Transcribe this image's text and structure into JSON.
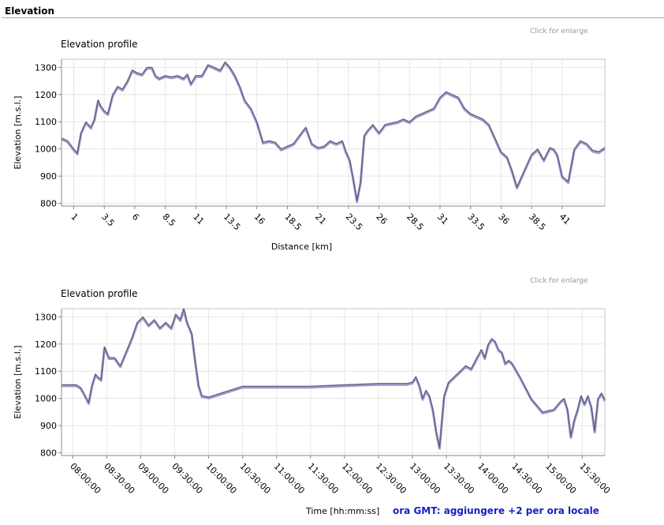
{
  "section": {
    "title": "Elevation"
  },
  "enlarge_label": "Click for enlarge",
  "footer": {
    "time_label": "Time  [hh:mm:ss]",
    "gmt_note": "ora GMT: aggiungere +2 per ora locale"
  },
  "colors": {
    "line": "#5c5c80",
    "line_shadow": "#9999c8",
    "grid": "#e6e6e6",
    "axis": "#888888"
  },
  "chart_data": [
    {
      "type": "line",
      "title": "Elevation profile",
      "xlabel": "Distance [km]",
      "ylabel": "Elevation [m.s.l.]",
      "xlim": [
        0,
        44.5
      ],
      "ylim": [
        790,
        1330
      ],
      "x_ticks": [
        1,
        3.5,
        6,
        8.5,
        11,
        13.5,
        16,
        18.5,
        21,
        23.5,
        26,
        28.5,
        31,
        33.5,
        36,
        38.5,
        41
      ],
      "x_tick_labels": [
        "1",
        "3.5",
        "6",
        "8.5",
        "11",
        "13.5",
        "16",
        "18.5",
        "21",
        "23.5",
        "26",
        "28.5",
        "31",
        "33.5",
        "36",
        "38.5",
        "41"
      ],
      "y_ticks": [
        800,
        900,
        1000,
        1100,
        1200,
        1300
      ],
      "y_tick_labels": [
        "800",
        "900",
        "1000",
        "1100",
        "1200",
        "1300"
      ],
      "grid": true,
      "series": [
        {
          "x": [
            0,
            0.5,
            1.0,
            1.3,
            1.6,
            2.0,
            2.4,
            2.7,
            3.0,
            3.2,
            3.5,
            3.8,
            4.2,
            4.6,
            5.0,
            5.4,
            5.8,
            6.2,
            6.6,
            7.0,
            7.4,
            7.7,
            8.0,
            8.5,
            9.0,
            9.5,
            10.0,
            10.3,
            10.6,
            11.0,
            11.5,
            12.0,
            12.5,
            13.0,
            13.4,
            13.8,
            14.2,
            14.6,
            15.0,
            15.5,
            16.0,
            16.5,
            17.0,
            17.5,
            18.0,
            18.5,
            19.0,
            19.5,
            20.0,
            20.5,
            21.0,
            21.5,
            22.0,
            22.5,
            23.0,
            23.3,
            23.6,
            23.9,
            24.2,
            24.5,
            24.8,
            25.1,
            25.5,
            26.0,
            26.5,
            27.0,
            27.5,
            28.0,
            28.5,
            29.0,
            29.5,
            30.0,
            30.5,
            31.0,
            31.5,
            32.0,
            32.5,
            33.0,
            33.5,
            34.0,
            34.5,
            35.0,
            35.5,
            36.0,
            36.5,
            36.9,
            37.3,
            37.7,
            38.1,
            38.5,
            39.0,
            39.5,
            40.0,
            40.3,
            40.6,
            41.0,
            41.5,
            42.0,
            42.5,
            43.0,
            43.5,
            44.0,
            44.5
          ],
          "y": [
            1040,
            1030,
            1000,
            985,
            1060,
            1100,
            1080,
            1110,
            1180,
            1160,
            1140,
            1130,
            1200,
            1230,
            1220,
            1250,
            1290,
            1280,
            1275,
            1300,
            1300,
            1270,
            1260,
            1270,
            1265,
            1270,
            1260,
            1275,
            1240,
            1270,
            1270,
            1310,
            1300,
            1290,
            1320,
            1300,
            1270,
            1230,
            1180,
            1150,
            1100,
            1025,
            1030,
            1025,
            1000,
            1010,
            1020,
            1050,
            1080,
            1020,
            1005,
            1010,
            1030,
            1020,
            1030,
            990,
            960,
            890,
            810,
            880,
            1050,
            1070,
            1090,
            1060,
            1090,
            1095,
            1100,
            1110,
            1100,
            1120,
            1130,
            1140,
            1150,
            1190,
            1210,
            1200,
            1190,
            1150,
            1130,
            1120,
            1110,
            1090,
            1040,
            990,
            970,
            920,
            860,
            900,
            940,
            980,
            1000,
            960,
            1005,
            1000,
            980,
            900,
            880,
            1000,
            1030,
            1020,
            995,
            990,
            1005
          ]
        }
      ]
    },
    {
      "type": "line",
      "title": "Elevation profile",
      "xlabel": "",
      "ylabel": "Elevation [m.s.l.]",
      "xlim": [
        "07:50:00",
        "15:50:00"
      ],
      "ylim": [
        790,
        1330
      ],
      "x_ticks": [
        "08:00:00",
        "08:30:00",
        "09:00:00",
        "09:30:00",
        "10:00:00",
        "10:30:00",
        "11:00:00",
        "11:30:00",
        "12:00:00",
        "12:30:00",
        "13:00:00",
        "13:30:00",
        "14:00:00",
        "14:30:00",
        "15:00:00",
        "15:30:00"
      ],
      "x_tick_labels": [
        "08:00:00",
        "08:30:00",
        "09:00:00",
        "09:30:00",
        "10:00:00",
        "10:30:00",
        "11:00:00",
        "11:30:00",
        "12:00:00",
        "12:30:00",
        "13:00:00",
        "13:30:00",
        "14:00:00",
        "14:30:00",
        "15:00:00",
        "15:30:00"
      ],
      "y_ticks": [
        800,
        900,
        1000,
        1100,
        1200,
        1300
      ],
      "y_tick_labels": [
        "800",
        "900",
        "1000",
        "1100",
        "1200",
        "1300"
      ],
      "grid": true,
      "series": [
        {
          "x": [
            "07:50:00",
            "08:03:00",
            "08:07:00",
            "08:11:00",
            "08:14:00",
            "08:17:00",
            "08:20:00",
            "08:22:00",
            "08:25:00",
            "08:28:00",
            "08:32:00",
            "08:37:00",
            "08:42:00",
            "08:47:00",
            "08:52:00",
            "08:57:00",
            "09:02:00",
            "09:07:00",
            "09:12:00",
            "09:17:00",
            "09:22:00",
            "09:27:00",
            "09:31:00",
            "09:35:00",
            "09:38:00",
            "09:41:00",
            "09:45:00",
            "09:48:00",
            "09:51:00",
            "09:54:00",
            "10:00:00",
            "10:30:00",
            "11:00:00",
            "11:30:00",
            "12:00:00",
            "12:30:00",
            "12:55:00",
            "13:00:00",
            "13:03:00",
            "13:06:00",
            "13:09:00",
            "13:12:00",
            "13:15:00",
            "13:18:00",
            "13:21:00",
            "13:24:00",
            "13:28:00",
            "13:32:00",
            "13:37:00",
            "13:42:00",
            "13:47:00",
            "13:52:00",
            "13:57:00",
            "14:01:00",
            "14:04:00",
            "14:07:00",
            "14:10:00",
            "14:13:00",
            "14:16:00",
            "14:19:00",
            "14:22:00",
            "14:25:00",
            "14:28:00",
            "14:35:00",
            "14:45:00",
            "14:55:00",
            "15:05:00",
            "15:08:00",
            "15:11:00",
            "15:14:00",
            "15:17:00",
            "15:20:00",
            "15:23:00",
            "15:26:00",
            "15:29:00",
            "15:32:00",
            "15:35:00",
            "15:38:00",
            "15:41:00",
            "15:44:00",
            "15:47:00",
            "15:50:00"
          ],
          "y": [
            1050,
            1050,
            1040,
            1010,
            985,
            1050,
            1090,
            1080,
            1070,
            1190,
            1150,
            1150,
            1120,
            1170,
            1220,
            1280,
            1300,
            1270,
            1290,
            1260,
            1280,
            1260,
            1310,
            1290,
            1330,
            1280,
            1240,
            1140,
            1050,
            1010,
            1005,
            1045,
            1045,
            1045,
            1050,
            1055,
            1055,
            1060,
            1080,
            1050,
            1000,
            1030,
            1010,
            960,
            880,
            820,
            1010,
            1060,
            1080,
            1100,
            1120,
            1110,
            1150,
            1180,
            1150,
            1200,
            1220,
            1210,
            1180,
            1170,
            1130,
            1140,
            1130,
            1080,
            1000,
            950,
            960,
            975,
            990,
            1000,
            960,
            860,
            920,
            960,
            1010,
            980,
            1010,
            970,
            880,
            1000,
            1020,
            995
          ]
        }
      ]
    }
  ]
}
